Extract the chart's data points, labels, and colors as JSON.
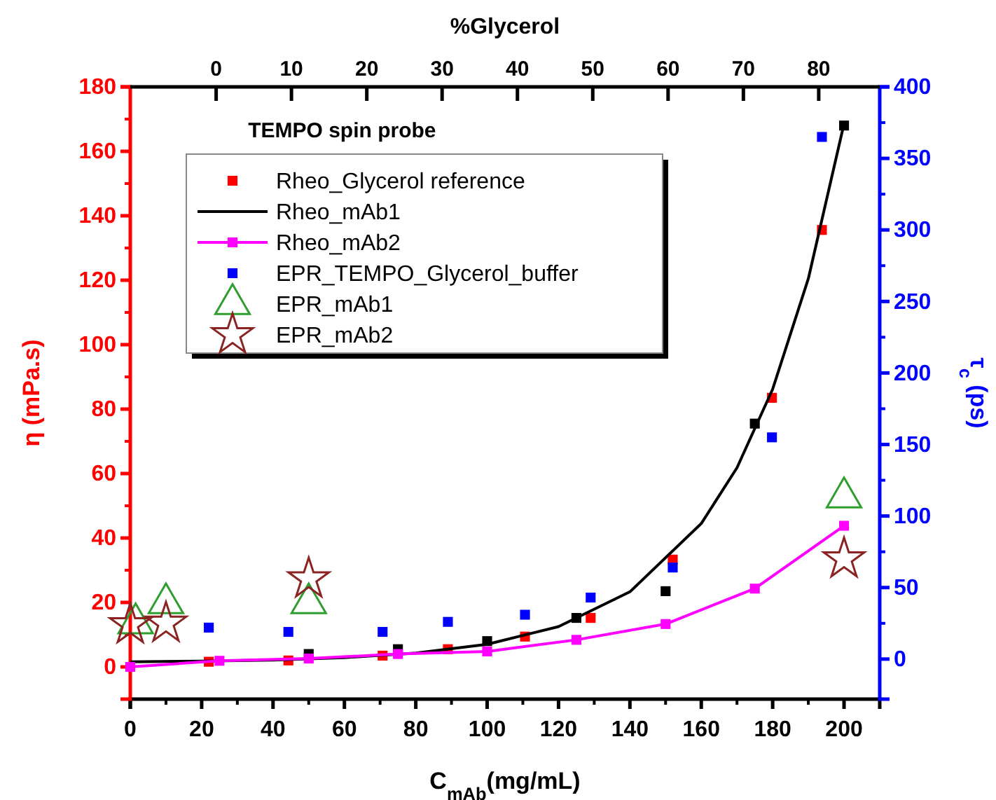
{
  "chart_data": {
    "type": "scatter",
    "title": "TEMPO spin probe",
    "xlabel": "C$_{mAb}$(mg/mL)",
    "ylabel": "η (mPa.s)",
    "y2label": "τ$_{c}$ (ps)",
    "x2label": "%Glycerol",
    "xlim": [
      0,
      210
    ],
    "xticks": [
      0,
      20,
      40,
      60,
      80,
      100,
      120,
      140,
      160,
      180,
      200
    ],
    "ylim": [
      -10,
      180
    ],
    "yticks": [
      0,
      20,
      40,
      60,
      80,
      100,
      120,
      140,
      160,
      180
    ],
    "y2lim": [
      -28,
      400
    ],
    "y2ticks": [
      0,
      50,
      100,
      150,
      200,
      250,
      300,
      350,
      400
    ],
    "x2lim": [
      -11.4,
      88.1
    ],
    "x2ticks": [
      0,
      10,
      20,
      30,
      40,
      50,
      60,
      70,
      80
    ],
    "legend": "top left",
    "grid": false,
    "series": [
      {
        "name": "Rheo_Glycerol reference",
        "marker": "square",
        "color": "#ff0000",
        "x": [
          22,
          44.3,
          70.7,
          89,
          110.6,
          129,
          152,
          179.8,
          193.8
        ],
        "values": [
          1.6,
          2,
          3.5,
          5.5,
          9.4,
          15.2,
          33.3,
          83.5,
          135.6
        ]
      },
      {
        "marker": "square",
        "color": "#000000",
        "x": [
          50,
          75,
          100,
          125,
          150,
          175,
          200
        ],
        "values": [
          4,
          5.5,
          8,
          15.2,
          23.5,
          75.5,
          168
        ]
      },
      {
        "name": "Rheo_mAb1",
        "type": "line",
        "marker": "none",
        "color": "#000000",
        "x": [
          0,
          20,
          40,
          60,
          80,
          100,
          120,
          140,
          160,
          170,
          180,
          190,
          200
        ],
        "values": [
          1.6,
          1.8,
          2.1,
          2.9,
          4.3,
          7,
          12.5,
          23.3,
          44.5,
          61.8,
          86.2,
          120.5,
          168.6
        ]
      },
      {
        "name": "Rheo_mAb2",
        "type": "line",
        "marker": "square",
        "color": "#ff00ff",
        "x": [
          0,
          25,
          50,
          75,
          100,
          125,
          150,
          175,
          200
        ],
        "values": [
          0,
          1.9,
          2.6,
          4,
          4.8,
          8.4,
          13.3,
          24.3,
          43.8
        ]
      },
      {
        "name": "EPR_TEMPO_Glycerol_buffer",
        "marker": "square",
        "axis": "y2",
        "color": "#0000ff",
        "x": [
          22,
          44.3,
          70.7,
          89,
          110.6,
          129,
          152,
          179.8,
          193.8
        ],
        "values": [
          22,
          19,
          19,
          26,
          31,
          43,
          64,
          155,
          365
        ]
      },
      {
        "name": "EPR_mAb1",
        "marker": "triangle",
        "axis": "y2",
        "color": "#2e9e2e",
        "x": [
          1.5,
          10,
          50,
          200
        ],
        "values": [
          25,
          39,
          39,
          113
        ]
      },
      {
        "name": "EPR_mAb2",
        "marker": "star",
        "axis": "y2",
        "color": "#8b2323",
        "x": [
          0,
          10,
          50,
          200
        ],
        "values": [
          24,
          25,
          56,
          70
        ]
      }
    ]
  }
}
